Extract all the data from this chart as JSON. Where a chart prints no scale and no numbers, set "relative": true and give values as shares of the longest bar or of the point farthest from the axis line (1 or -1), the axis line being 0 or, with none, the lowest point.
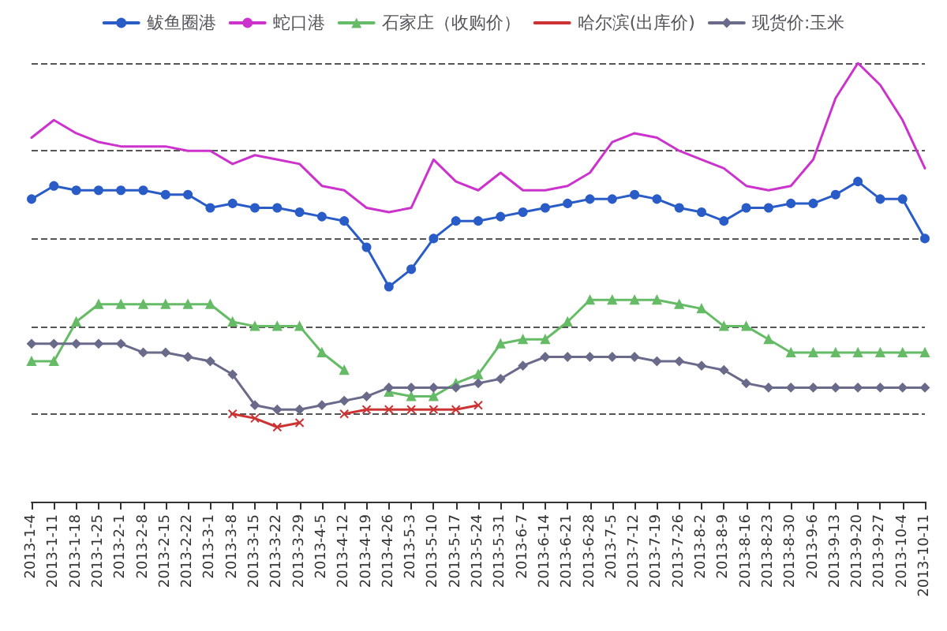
{
  "chart_data": {
    "type": "line",
    "relative": true,
    "grid": "y",
    "legend": "top",
    "line_style": "solid",
    "categories": [
      "2013-1-4",
      "2013-1-11",
      "2013-1-18",
      "2013-1-25",
      "2013-2-1",
      "2013-2-8",
      "2013-2-15",
      "2013-2-22",
      "2013-3-1",
      "2013-3-8",
      "2013-3-15",
      "2013-3-22",
      "2013-3-29",
      "2013-4-5",
      "2013-4-12",
      "2013-4-19",
      "2013-4-26",
      "2013-5-3",
      "2013-5-10",
      "2013-5-17",
      "2013-5-24",
      "2013-5-31",
      "2013-6-7",
      "2013-6-14",
      "2013-6-21",
      "2013-6-28",
      "2013-7-5",
      "2013-7-12",
      "2013-7-19",
      "2013-7-26",
      "2013-8-2",
      "2013-8-9",
      "2013-8-16",
      "2013-8-23",
      "2013-8-30",
      "2013-9-6",
      "2013-9-13",
      "2013-9-20",
      "2013-9-27",
      "2013-10-4",
      "2013-10-11"
    ],
    "series": [
      {
        "name": "鲅鱼圈港",
        "color": "#2a5cc8",
        "marker": "circle",
        "values": [
          0.69,
          0.72,
          0.71,
          0.71,
          0.71,
          0.71,
          0.7,
          0.7,
          0.67,
          0.68,
          0.67,
          0.67,
          0.66,
          0.65,
          0.64,
          0.58,
          0.49,
          0.53,
          0.6,
          0.64,
          0.64,
          0.65,
          0.66,
          0.67,
          0.68,
          0.69,
          0.69,
          0.7,
          0.69,
          0.67,
          0.66,
          0.64,
          0.67,
          0.67,
          0.68,
          0.68,
          0.7,
          0.73,
          0.69,
          0.69,
          0.6
        ]
      },
      {
        "name": "蛇口港",
        "color": "#cc33cc",
        "marker": "none",
        "values": [
          0.83,
          0.87,
          0.84,
          0.82,
          0.81,
          0.81,
          0.81,
          0.8,
          0.8,
          0.77,
          0.79,
          0.78,
          0.77,
          0.72,
          0.71,
          0.67,
          0.66,
          0.67,
          0.78,
          0.73,
          0.71,
          0.75,
          0.71,
          0.71,
          0.72,
          0.75,
          0.82,
          0.84,
          0.83,
          0.8,
          0.78,
          0.76,
          0.72,
          0.71,
          0.72,
          0.78,
          0.92,
          1,
          0.95,
          0.87,
          0.76
        ]
      },
      {
        "name": "石家庄（收购价）",
        "color": "#66bb66",
        "marker": "triangle",
        "values": [
          0.32,
          0.32,
          0.41,
          0.45,
          0.45,
          0.45,
          0.45,
          0.45,
          0.45,
          0.41,
          0.4,
          0.4,
          0.4,
          0.34,
          0.3,
          null,
          0.25,
          0.24,
          0.24,
          0.27,
          0.29,
          0.36,
          0.37,
          0.37,
          0.41,
          0.46,
          0.46,
          0.46,
          0.46,
          0.45,
          0.44,
          0.4,
          0.4,
          0.37,
          0.34,
          0.34,
          0.34,
          0.34,
          0.34,
          0.34,
          0.34
        ]
      },
      {
        "name": "哈尔滨(出库价)",
        "color": "#cc3333",
        "marker": "cross",
        "values": [
          null,
          null,
          null,
          null,
          null,
          null,
          null,
          null,
          null,
          0.2,
          0.19,
          0.17,
          0.18,
          null,
          0.2,
          0.21,
          0.21,
          0.21,
          0.21,
          0.21,
          0.22,
          null,
          null,
          null,
          null,
          null,
          null,
          null,
          null,
          null,
          null,
          null,
          null,
          null,
          null,
          null,
          null,
          null,
          null,
          null,
          null
        ]
      },
      {
        "name": "现货价:玉米",
        "color": "#6a6a8a",
        "marker": "diamond",
        "values": [
          0.36,
          0.36,
          0.36,
          0.36,
          0.36,
          0.34,
          0.34,
          0.33,
          0.32,
          0.29,
          0.22,
          0.21,
          0.21,
          0.22,
          0.23,
          0.24,
          0.26,
          0.26,
          0.26,
          0.26,
          0.27,
          0.28,
          0.31,
          0.33,
          0.33,
          0.33,
          0.33,
          0.33,
          0.32,
          0.32,
          0.31,
          0.3,
          0.27,
          0.26,
          0.26,
          0.26,
          0.26,
          0.26,
          0.26,
          0.26,
          0.26
        ]
      }
    ]
  }
}
